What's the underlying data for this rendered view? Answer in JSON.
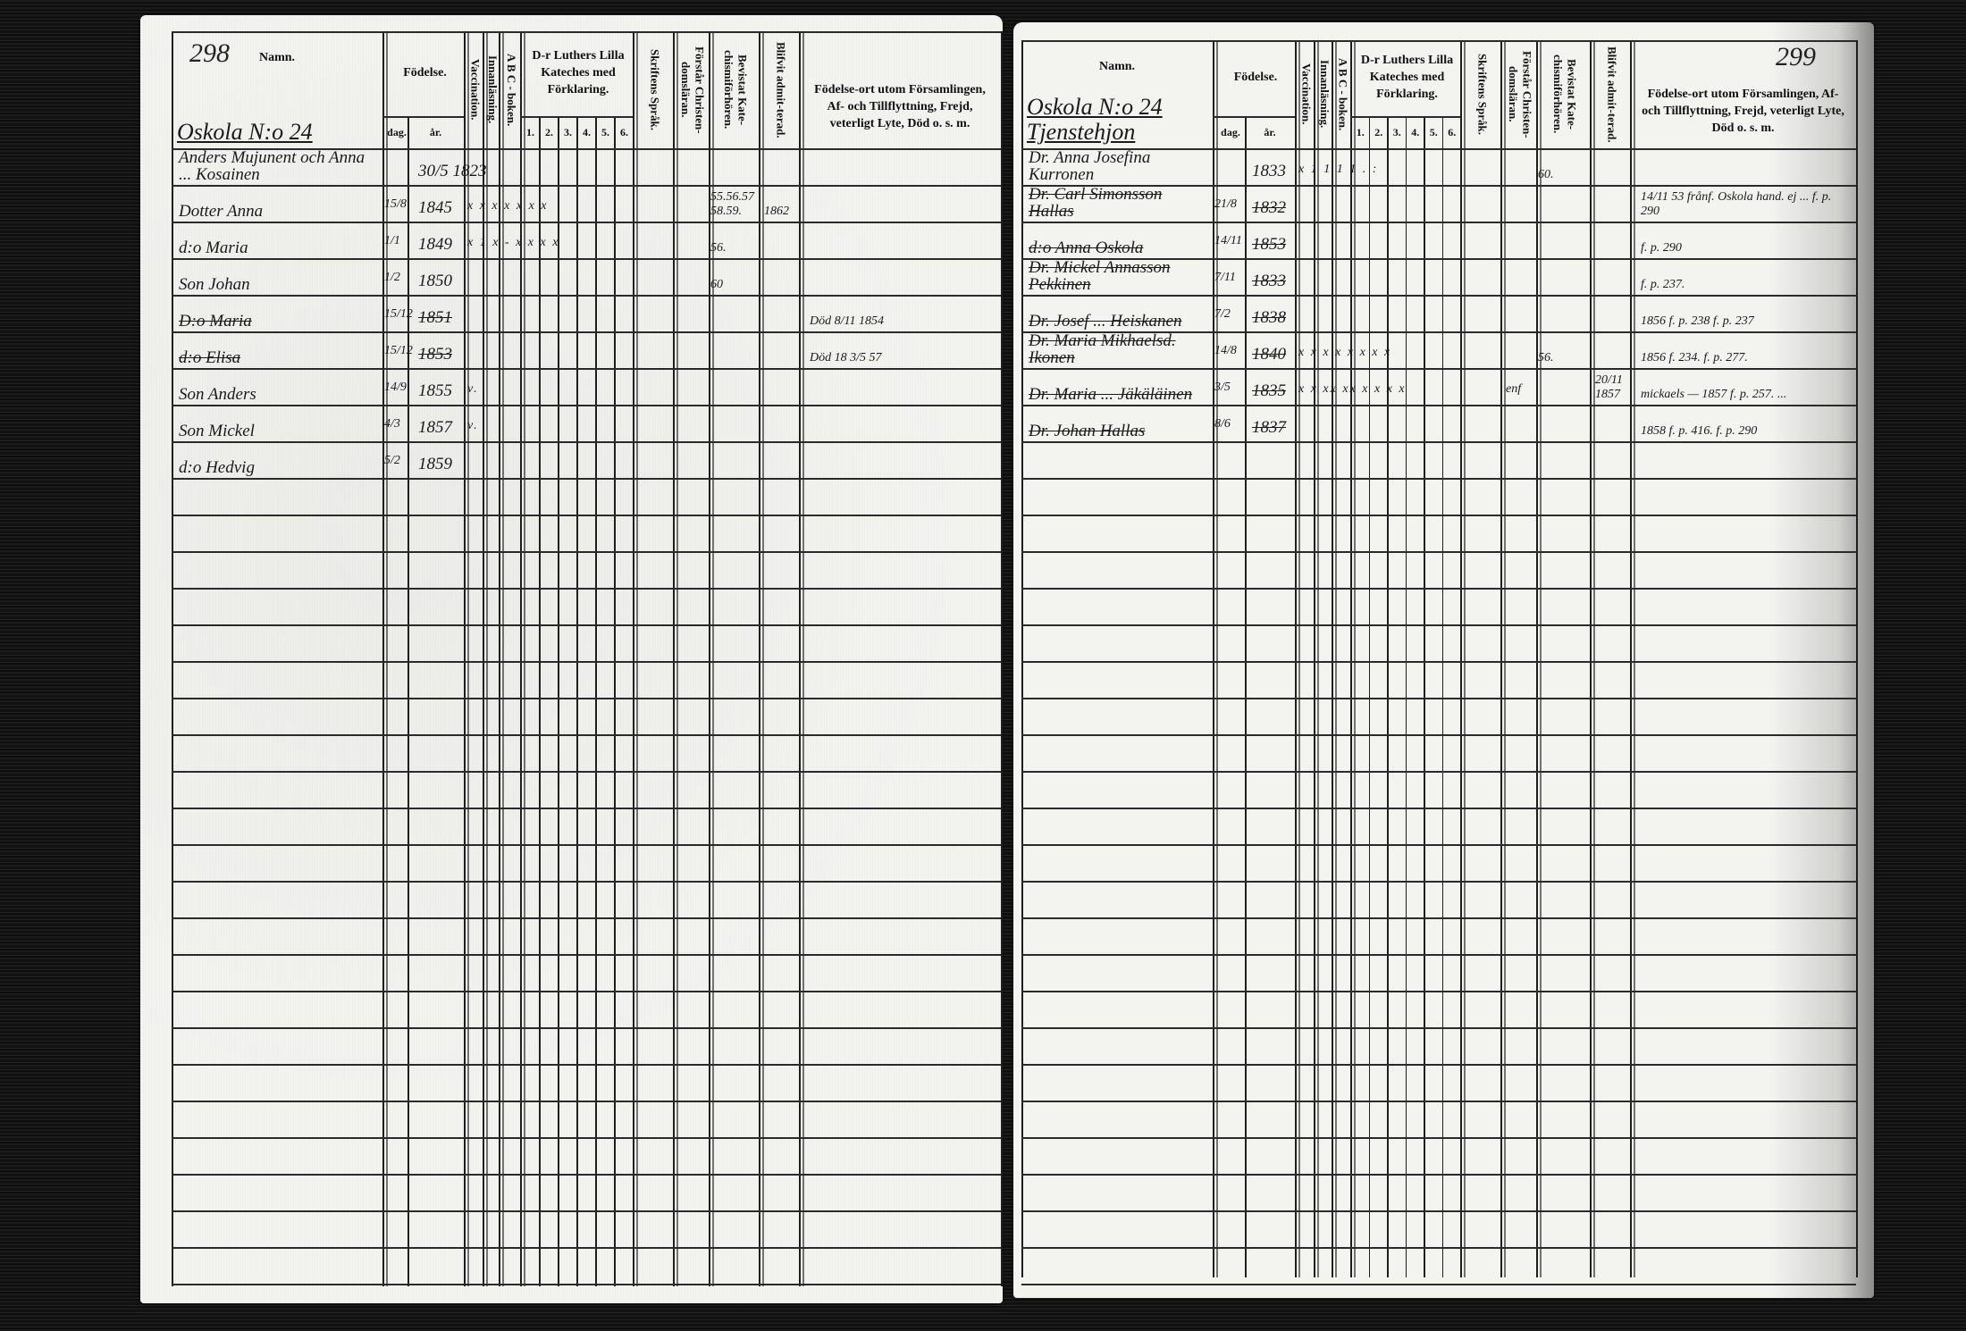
{
  "headers": {
    "namn": "Namn.",
    "fodelse": "Födelse.",
    "dag": "dag.",
    "ar": "år.",
    "vaccination": "Vaccination.",
    "innanlasning": "Innanläsning.",
    "abc": "A B C - boken.",
    "luther": "D-r Luthers Lilla Kateches med Förklaring.",
    "luther_cols": [
      "1.",
      "2.",
      "3.",
      "4.",
      "5.",
      "6."
    ],
    "skriftens": "Skriftens Språk.",
    "forstar": "Förstår Christen-domsläran.",
    "beviistat": "Bevistat Kate-chismiförhören.",
    "blifvit": "Blifvit admit-terad.",
    "fodelseort": "Födelse-ort utom Församlingen, Af- och Tillflyttning, Frejd, veterligt Lyte, Död o. s. m."
  },
  "left": {
    "page_number": "298",
    "household": "Oskola N:o 24",
    "rows": [
      {
        "name": "Anders Mujunent och Anna ... Kosainen",
        "dag": "",
        "ar": "30/5 1823",
        "marks": "",
        "bevistat": "",
        "blifvit": "",
        "forstar": "",
        "note": "",
        "struck": false
      },
      {
        "name": "Dotter Anna",
        "dag": "15/8",
        "ar": "1845",
        "marks": "x x x x x x x",
        "bevistat": "55.56.57 58.59.",
        "blifvit": "1862",
        "forstar": "",
        "note": "",
        "struck": false
      },
      {
        "name": "d:o Maria",
        "dag": "1/1",
        "ar": "1849",
        "marks": "x 1 x - x x x x",
        "bevistat": "56.",
        "blifvit": "",
        "forstar": "",
        "note": "",
        "struck": false
      },
      {
        "name": "Son Johan",
        "dag": "1/2",
        "ar": "1850",
        "marks": "",
        "bevistat": "60",
        "blifvit": "",
        "forstar": "",
        "note": "",
        "struck": false
      },
      {
        "name": "D:o Maria",
        "dag": "15/12",
        "ar": "1851",
        "marks": "",
        "bevistat": "",
        "blifvit": "",
        "forstar": "",
        "note": "Död 8/11 1854",
        "struck": true
      },
      {
        "name": "d:o Elisa",
        "dag": "15/12",
        "ar": "1853",
        "marks": "",
        "bevistat": "",
        "blifvit": "",
        "forstar": "",
        "note": "Död 18 3/5 57",
        "struck": true
      },
      {
        "name": "Son Anders",
        "dag": "14/9",
        "ar": "1855",
        "marks": "v.",
        "bevistat": "",
        "blifvit": "",
        "forstar": "",
        "note": "",
        "struck": false
      },
      {
        "name": "Son Mickel",
        "dag": "4/3",
        "ar": "1857",
        "marks": "v.",
        "bevistat": "",
        "blifvit": "",
        "forstar": "",
        "note": "",
        "struck": false
      },
      {
        "name": "d:o Hedvig",
        "dag": "5/2",
        "ar": "1859",
        "marks": "",
        "bevistat": "",
        "blifvit": "",
        "forstar": "",
        "note": "",
        "struck": false
      }
    ]
  },
  "right": {
    "page_number": "299",
    "household": "Oskola N:o 24 Tjenstehjon",
    "rows": [
      {
        "name": "Dr. Anna Josefina Kurronen",
        "dag": "",
        "ar": "1833",
        "marks": "x 1 1 1 1 . :",
        "bevistat": "60.",
        "blifvit": "",
        "forstar": "",
        "note": "",
        "struck": false
      },
      {
        "name": "Dr. Carl Simonsson Hallas",
        "dag": "21/8",
        "ar": "1832",
        "marks": "",
        "bevistat": "",
        "blifvit": "",
        "forstar": "",
        "note": "14/11 53 frånf. Oskola hand. ej ... f. p. 290",
        "struck": true
      },
      {
        "name": "d:o Anna Oskola",
        "dag": "14/11",
        "ar": "1853",
        "marks": "",
        "bevistat": "",
        "blifvit": "",
        "forstar": "",
        "note": "f. p. 290",
        "struck": true
      },
      {
        "name": "Dr. Mickel Annasson Pekkinen",
        "dag": "7/11",
        "ar": "1833",
        "marks": "",
        "bevistat": "",
        "blifvit": "",
        "forstar": "",
        "note": "f. p. 237.",
        "struck": true
      },
      {
        "name": "Dr. Josef ... Heiskanen",
        "dag": "7/2",
        "ar": "1838",
        "marks": "",
        "bevistat": "",
        "blifvit": "",
        "forstar": "",
        "note": "1856 f. p. 238 f. p. 237",
        "struck": true
      },
      {
        "name": "Dr. Maria Mikhaelsd. Ikonen",
        "dag": "14/8",
        "ar": "1840",
        "marks": "x x x x x x x x",
        "bevistat": "56.",
        "blifvit": "",
        "forstar": "",
        "note": "1856 f. 234. f. p. 277.",
        "struck": true
      },
      {
        "name": "Dr. Maria ... Jäkäläinen",
        "dag": "3/5",
        "ar": "1835",
        "marks": "x x xx xx x x x x",
        "bevistat": "",
        "blifvit": "20/11 1857",
        "forstar": "enf",
        "note": "mickaels — 1857 f. p. 257. ...",
        "struck": true
      },
      {
        "name": "Dr. Johan Hallas",
        "dag": "8/6",
        "ar": "1837",
        "marks": "",
        "bevistat": "",
        "blifvit": "",
        "forstar": "",
        "note": "1858 f. p. 416. f. p. 290",
        "struck": true
      }
    ]
  }
}
